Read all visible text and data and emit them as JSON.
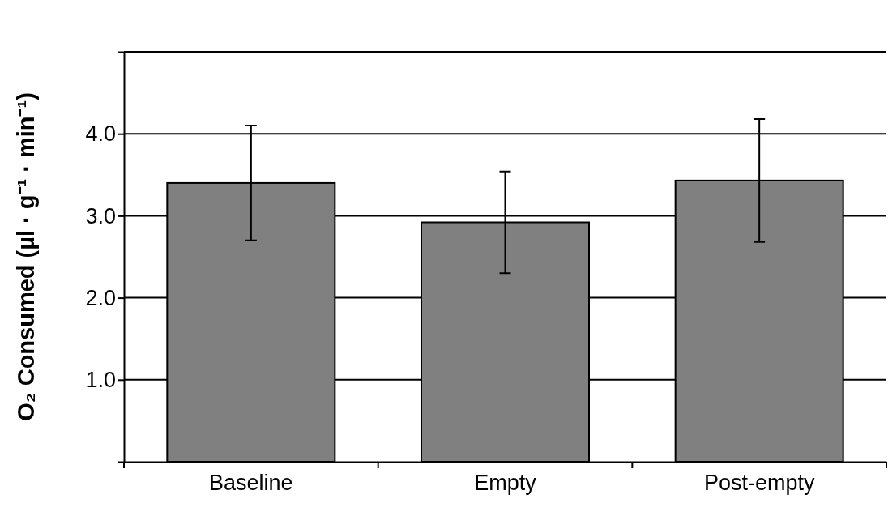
{
  "chart_data": {
    "type": "bar",
    "ylabel": "O₂ Consumed (µl · g⁻¹ · min⁻¹)",
    "categories": [
      "Baseline",
      "Empty",
      "Post-empty"
    ],
    "values": [
      3.4,
      2.92,
      3.43
    ],
    "errors": [
      0.7,
      0.62,
      0.75
    ],
    "color": "#808080",
    "ylim": [
      0,
      5
    ],
    "yticks": [
      {
        "value": 0,
        "label": null
      },
      {
        "value": 1,
        "label": "1.0"
      },
      {
        "value": 2,
        "label": "2.0"
      },
      {
        "value": 3,
        "label": "3.0"
      },
      {
        "value": 4,
        "label": "4.0"
      },
      {
        "value": 5,
        "label": null
      }
    ],
    "grid": "y"
  }
}
